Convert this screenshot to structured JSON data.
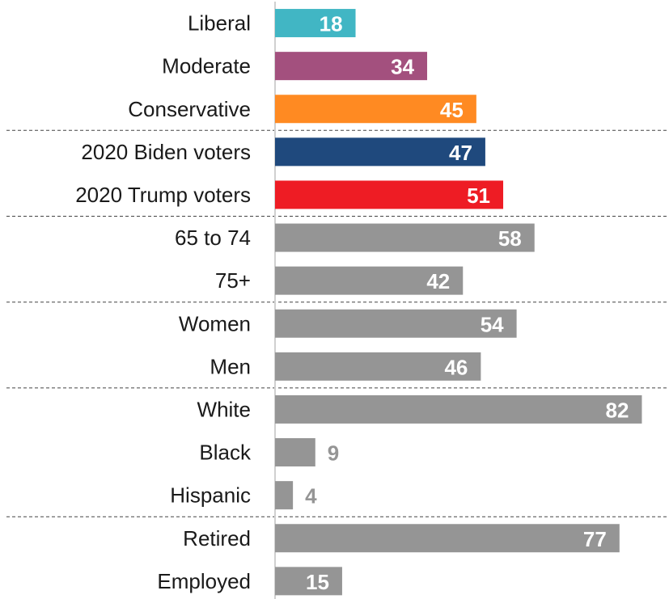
{
  "chart_data": {
    "type": "bar",
    "orientation": "horizontal",
    "xlim": [
      0,
      100
    ],
    "grid": false,
    "categories": [
      "Liberal",
      "Moderate",
      "Conservative",
      "2020 Biden voters",
      "2020 Trump voters",
      "65 to 74",
      "75+",
      "Women",
      "Men",
      "White",
      "Black",
      "Hispanic",
      "Retired",
      "Employed"
    ],
    "values": [
      18,
      34,
      45,
      47,
      51,
      58,
      42,
      54,
      46,
      82,
      9,
      4,
      77,
      15
    ],
    "colors": [
      "#41b6c4",
      "#a3507e",
      "#ff8a22",
      "#1f497d",
      "#ee1c24",
      "#959595",
      "#959595",
      "#959595",
      "#959595",
      "#959595",
      "#959595",
      "#959595",
      "#959595",
      "#959595"
    ],
    "group_separators_after": [
      2,
      4,
      6,
      8,
      11
    ]
  }
}
